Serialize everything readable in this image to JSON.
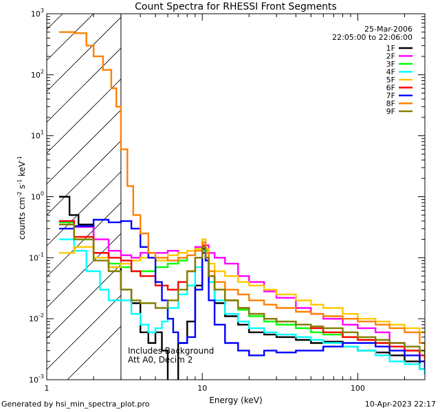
{
  "chart_data": {
    "type": "line",
    "title": "Count Spectra for RHESSI Front Segments",
    "xlabel": "Energy (keV)",
    "ylabel": "counts cm-2 s-1 keV-1",
    "xscale": "log",
    "yscale": "log",
    "xlim": [
      1,
      270
    ],
    "ylim": [
      0.001,
      1000
    ],
    "x_ticks": [
      1,
      10,
      100
    ],
    "x_tick_labels": [
      "1",
      "10",
      "100"
    ],
    "y_tick_exponents": [
      -3,
      -2,
      -1,
      0,
      1,
      2,
      3
    ],
    "legend_position": "top-right",
    "date": "25-Mar-2006",
    "time_range": "22:05:00 to 22:06:00",
    "annotation_line1": "Includes Background",
    "annotation_line2": "Att A0, Decim 2",
    "hatched_region_keV": [
      1,
      3
    ],
    "series": [
      {
        "name": "1F",
        "color": "#000000",
        "x": [
          1.2,
          1.4,
          1.6,
          2.0,
          2.5,
          3.0,
          3.5,
          4.0,
          4.5,
          5.0,
          5.5,
          6.0,
          7.0,
          8.0,
          9.0,
          10.0,
          10.5,
          11.0,
          12,
          14,
          17,
          20,
          25,
          30,
          40,
          50,
          60,
          80,
          100,
          130,
          160,
          200,
          250,
          270
        ],
        "y": [
          1.0,
          0.5,
          0.35,
          0.12,
          0.07,
          0.03,
          0.018,
          0.006,
          0.004,
          0.006,
          0.003,
          0.0008,
          0.004,
          0.009,
          0.035,
          0.14,
          0.1,
          0.04,
          0.018,
          0.011,
          0.008,
          0.006,
          0.0055,
          0.005,
          0.0045,
          0.004,
          0.0042,
          0.0035,
          0.003,
          0.0028,
          0.0025,
          0.002,
          0.0015,
          0.0012
        ]
      },
      {
        "name": "2F",
        "color": "#ff00ff",
        "x": [
          1.2,
          1.5,
          2.0,
          2.5,
          3.0,
          3.5,
          4.0,
          5.0,
          6.0,
          7.0,
          8.0,
          9.0,
          10.0,
          10.5,
          11.0,
          12,
          14,
          17,
          20,
          25,
          30,
          40,
          50,
          60,
          80,
          100,
          130,
          160,
          200,
          250,
          270
        ],
        "y": [
          0.4,
          0.32,
          0.2,
          0.13,
          0.11,
          0.1,
          0.12,
          0.12,
          0.13,
          0.12,
          0.13,
          0.15,
          0.18,
          0.16,
          0.12,
          0.1,
          0.08,
          0.05,
          0.04,
          0.028,
          0.022,
          0.015,
          0.012,
          0.01,
          0.008,
          0.007,
          0.006,
          0.004,
          0.003,
          0.002,
          0.0015
        ]
      },
      {
        "name": "3F",
        "color": "#00ff00",
        "x": [
          1.2,
          1.5,
          2.0,
          2.5,
          3.0,
          3.5,
          4.0,
          5.0,
          6.0,
          7.0,
          8.0,
          9.0,
          10.0,
          10.5,
          11.0,
          12,
          14,
          17,
          20,
          25,
          30,
          40,
          50,
          60,
          80,
          100,
          130,
          160,
          200,
          250,
          270
        ],
        "y": [
          0.38,
          0.2,
          0.1,
          0.08,
          0.07,
          0.06,
          0.06,
          0.07,
          0.08,
          0.09,
          0.11,
          0.14,
          0.18,
          0.13,
          0.05,
          0.03,
          0.02,
          0.014,
          0.011,
          0.009,
          0.008,
          0.007,
          0.006,
          0.0055,
          0.005,
          0.0045,
          0.004,
          0.0035,
          0.003,
          0.002,
          0.0015
        ]
      },
      {
        "name": "4F",
        "color": "#00ffff",
        "x": [
          1.2,
          1.5,
          1.8,
          2.2,
          2.5,
          3.0,
          3.5,
          4.0,
          4.5,
          5.0,
          5.5,
          6.0,
          7.0,
          8.0,
          9.0,
          10.0,
          10.5,
          11.0,
          12,
          14,
          17,
          20,
          25,
          30,
          40,
          50,
          60,
          80,
          100,
          130,
          160,
          200,
          250,
          270
        ],
        "y": [
          0.2,
          0.13,
          0.06,
          0.03,
          0.02,
          0.02,
          0.012,
          0.008,
          0.006,
          0.007,
          0.009,
          0.015,
          0.025,
          0.035,
          0.07,
          0.13,
          0.1,
          0.04,
          0.02,
          0.012,
          0.009,
          0.007,
          0.006,
          0.0055,
          0.005,
          0.0045,
          0.004,
          0.0035,
          0.003,
          0.0025,
          0.002,
          0.0018,
          0.0015,
          0.0012
        ]
      },
      {
        "name": "5F",
        "color": "#ffc800",
        "x": [
          1.2,
          1.5,
          2.0,
          2.5,
          3.0,
          3.5,
          4.0,
          5.0,
          6.0,
          7.0,
          8.0,
          9.0,
          10.0,
          10.5,
          11.0,
          12,
          14,
          17,
          20,
          25,
          30,
          40,
          50,
          60,
          80,
          100,
          130,
          160,
          200,
          250,
          270
        ],
        "y": [
          0.12,
          0.15,
          0.1,
          0.07,
          0.08,
          0.09,
          0.1,
          0.09,
          0.11,
          0.12,
          0.13,
          0.14,
          0.2,
          0.14,
          0.08,
          0.06,
          0.05,
          0.04,
          0.035,
          0.03,
          0.025,
          0.02,
          0.017,
          0.015,
          0.012,
          0.01,
          0.009,
          0.008,
          0.007,
          0.006,
          0.006
        ]
      },
      {
        "name": "6F",
        "color": "#ff0000",
        "x": [
          1.2,
          1.5,
          2.0,
          2.5,
          3.0,
          3.5,
          4.0,
          5.0,
          6.0,
          7.0,
          8.0,
          9.0,
          10.0,
          10.5,
          11.0,
          12,
          14,
          17,
          20,
          25,
          30,
          40,
          50,
          60,
          80,
          100,
          130,
          160,
          200,
          250,
          270
        ],
        "y": [
          0.4,
          0.22,
          0.12,
          0.1,
          0.09,
          0.06,
          0.05,
          0.035,
          0.03,
          0.04,
          0.06,
          0.1,
          0.16,
          0.1,
          0.05,
          0.03,
          0.02,
          0.015,
          0.012,
          0.01,
          0.009,
          0.008,
          0.007,
          0.006,
          0.005,
          0.0045,
          0.004,
          0.0035,
          0.003,
          0.0025,
          0.002
        ]
      },
      {
        "name": "7F",
        "color": "#0000ff",
        "x": [
          1.2,
          1.5,
          2.0,
          2.5,
          3.0,
          3.5,
          4.0,
          4.5,
          5.0,
          5.5,
          6.0,
          6.5,
          7.0,
          8.0,
          9.0,
          10.0,
          10.5,
          11.0,
          12,
          14,
          17,
          20,
          25,
          30,
          40,
          50,
          60,
          80,
          100,
          130,
          160,
          200,
          250,
          270
        ],
        "y": [
          0.3,
          0.33,
          0.42,
          0.38,
          0.4,
          0.3,
          0.15,
          0.1,
          0.04,
          0.02,
          0.01,
          0.006,
          0.004,
          0.005,
          0.03,
          0.12,
          0.09,
          0.02,
          0.008,
          0.004,
          0.003,
          0.0025,
          0.003,
          0.0028,
          0.003,
          0.003,
          0.0035,
          0.004,
          0.004,
          0.0035,
          0.003,
          0.0025,
          0.002,
          0.0015
        ]
      },
      {
        "name": "8F",
        "color": "#ff8000",
        "x": [
          1.2,
          1.5,
          1.8,
          2.0,
          2.3,
          2.6,
          2.8,
          3.0,
          3.3,
          3.6,
          4.0,
          4.5,
          5.0,
          6.0,
          7.0,
          8.0,
          9.0,
          10.0,
          10.5,
          11.0,
          12,
          14,
          17,
          20,
          25,
          30,
          40,
          50,
          60,
          80,
          100,
          130,
          160,
          200,
          250,
          270
        ],
        "y": [
          500,
          480,
          300,
          200,
          120,
          60,
          30,
          6,
          1.5,
          0.5,
          0.25,
          0.12,
          0.1,
          0.09,
          0.1,
          0.11,
          0.13,
          0.18,
          0.12,
          0.06,
          0.04,
          0.03,
          0.025,
          0.02,
          0.017,
          0.015,
          0.013,
          0.012,
          0.011,
          0.01,
          0.009,
          0.008,
          0.007,
          0.006,
          0.004,
          0.003
        ]
      },
      {
        "name": "9F",
        "color": "#808000",
        "x": [
          1.2,
          1.5,
          2.0,
          2.5,
          3.0,
          3.5,
          4.0,
          5.0,
          6.0,
          7.0,
          8.0,
          9.0,
          10.0,
          10.5,
          11.0,
          12,
          14,
          17,
          20,
          25,
          30,
          40,
          50,
          60,
          80,
          100,
          130,
          160,
          200,
          250,
          270
        ],
        "y": [
          0.35,
          0.2,
          0.09,
          0.06,
          0.03,
          0.02,
          0.018,
          0.015,
          0.02,
          0.03,
          0.06,
          0.1,
          0.15,
          0.1,
          0.05,
          0.03,
          0.02,
          0.015,
          0.012,
          0.01,
          0.009,
          0.008,
          0.0075,
          0.007,
          0.006,
          0.005,
          0.0045,
          0.004,
          0.0035,
          0.003,
          0.0025
        ]
      }
    ]
  },
  "footer": {
    "generated_by": "Generated by hsi_min_spectra_plot.pro",
    "timestamp": "10-Apr-2023 22:17"
  }
}
